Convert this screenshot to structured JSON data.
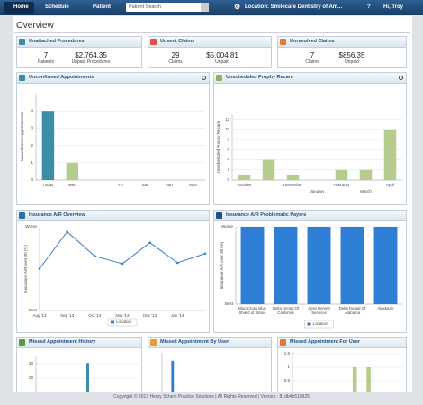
{
  "nav": {
    "home": "Home",
    "schedule": "Schedule",
    "patient": "Patient",
    "search_placeholder": "Patient Search",
    "location": "Location: Smilecare Dentistry of Am...",
    "help": "?",
    "greeting": "Hi, Troy"
  },
  "page_title": "Overview",
  "summary_cards": [
    {
      "title": "Unattached Procedures",
      "stats": [
        {
          "value": 7,
          "label": "Patients"
        },
        {
          "value": "$2,764.35",
          "label": "Unpaid Procedures"
        }
      ]
    },
    {
      "title": "Unsent Claims",
      "stats": [
        {
          "value": 29,
          "label": "Claims"
        },
        {
          "value": "$5,004.81",
          "label": "Unpaid"
        }
      ]
    },
    {
      "title": "Unresolved Claims",
      "stats": [
        {
          "value": 7,
          "label": "Claims"
        },
        {
          "value": "$856.35",
          "label": "Unpaid"
        }
      ]
    }
  ],
  "chart_data": [
    {
      "type": "bar",
      "title": "Unconfirmed Appointments",
      "y_label": "Unconfirmed Appointments",
      "categories": [
        "Today",
        "Wed",
        null,
        "Fri",
        "Sat",
        "Sun",
        "Mon"
      ],
      "values": [
        4,
        1,
        0,
        0,
        0,
        0,
        0
      ],
      "colors": [
        "#3a8fa6",
        "#b5cc8e",
        "#b5cc8e",
        "#b5cc8e",
        "#b5cc8e",
        "#b5cc8e",
        "#b5cc8e"
      ],
      "ylim": [
        0,
        5
      ],
      "yticks": [
        0,
        1,
        2,
        3,
        4
      ],
      "grid": true
    },
    {
      "type": "bar",
      "title": "Unscheduled Prophy Recare",
      "y_label": "Unscheduled Prophy Recare",
      "categories": [
        "October",
        null,
        "December",
        "January",
        "February",
        "March",
        "April"
      ],
      "values": [
        1,
        4,
        1,
        0,
        2,
        2,
        10
      ],
      "color": "#b5cc8e",
      "ylim": [
        0,
        13
      ],
      "yticks": [
        0,
        2,
        4,
        6,
        8,
        10,
        12
      ],
      "grid": true
    },
    {
      "type": "line",
      "title": "Insurance A/R Overview",
      "y_label": "Insurance A/R over 30 (%)",
      "categories": [
        "Aug '13",
        "Sep '13",
        "Oct '13",
        "Nov '13",
        "Dec '13",
        "Jan '14",
        null
      ],
      "series": [
        {
          "name": "Location",
          "color": "#3b7fc4",
          "values": [
            50,
            94,
            65,
            56,
            81,
            57,
            68
          ]
        }
      ],
      "ylim": [
        0,
        100
      ],
      "yticks": [
        {
          "value": 0,
          "label": "Best"
        },
        {
          "value": 100,
          "label": "Worse"
        }
      ],
      "grid": false
    },
    {
      "type": "bar",
      "title": "Insurance A/R Problematic Payers",
      "y_label": "Insurance A/R over 30 (%)",
      "categories": [
        "Blue Cross Blue Shield of Illinois",
        "Delta Dental Of California",
        "Apex Benefit Services",
        "Delta Dental Of Alabama",
        "AlaskaAir"
      ],
      "series": [
        {
          "name": "Location",
          "color": "#2e7ed6",
          "values": [
            100,
            100,
            100,
            100,
            100
          ]
        }
      ],
      "ylim": [
        0,
        100
      ],
      "yticks": [
        {
          "value": 0,
          "label": "Best"
        },
        {
          "value": 100,
          "label": "Worse"
        }
      ],
      "grid": true
    },
    {
      "type": "bar",
      "title": "Missed Appointment History",
      "categories": [
        null,
        null,
        null,
        null,
        null,
        null,
        null
      ],
      "values": [
        0,
        0,
        0,
        41,
        0,
        0,
        0
      ],
      "color": "#3a8fa6",
      "ylim": [
        0,
        50
      ],
      "yticks": [
        20,
        40
      ],
      "grid": true
    },
    {
      "type": "bar",
      "title": "Missed Appointment By User",
      "categories": [
        null,
        null,
        null,
        null,
        null
      ],
      "values": [
        1,
        0,
        0,
        0,
        0
      ],
      "color": "#2e7ed6",
      "ylim": [
        0,
        1.25
      ],
      "grid": true
    },
    {
      "type": "bar",
      "title": "Missed Appointment For User",
      "categories": [
        null,
        null,
        null,
        null,
        null,
        null,
        null,
        null
      ],
      "values": [
        0,
        0,
        0,
        0,
        1,
        1,
        0,
        0
      ],
      "color": "#b5cc8e",
      "ylim": [
        0,
        1.6
      ],
      "yticks": [
        0.5,
        1,
        1.5
      ],
      "grid": true
    }
  ],
  "footer": "Copyright © 2013 Henry Schein Practice Solutions | All Rights Reserved | Version : 81db4b518925"
}
